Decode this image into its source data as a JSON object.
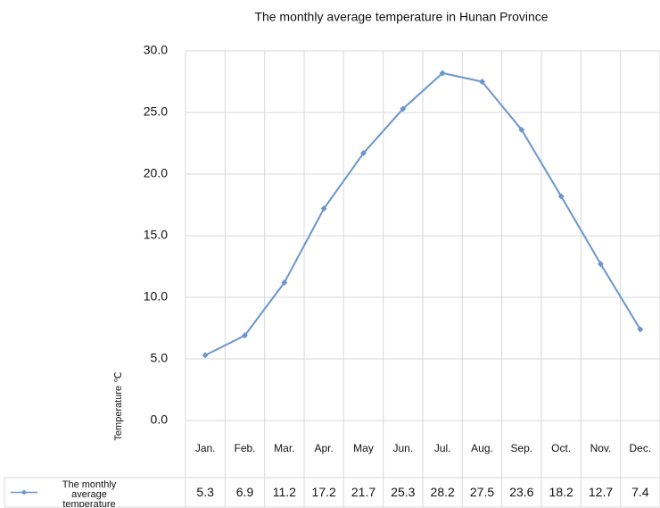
{
  "chart_data": {
    "type": "line",
    "title": "The monthly average temperature in Hunan Province",
    "y_label": "Temperature ℃",
    "categories": [
      "Jan.",
      "Feb.",
      "Mar.",
      "Apr.",
      "May",
      "Jun.",
      "Jul.",
      "Aug.",
      "Sep.",
      "Oct.",
      "Nov.",
      "Dec."
    ],
    "series": [
      {
        "name": "The monthly average temperature",
        "color": "#6a96cf",
        "values": [
          5.3,
          6.9,
          11.2,
          17.2,
          21.7,
          25.3,
          28.2,
          27.5,
          23.6,
          18.2,
          12.7,
          7.4
        ]
      }
    ],
    "ylim": [
      0,
      30
    ],
    "yticks": [
      {
        "value": 0,
        "label": "0.0"
      },
      {
        "value": 5,
        "label": "5.0"
      },
      {
        "value": 10,
        "label": "10.0"
      },
      {
        "value": 15,
        "label": "15.0"
      },
      {
        "value": 20,
        "label": "20.0"
      },
      {
        "value": 25,
        "label": "25.0"
      },
      {
        "value": 30,
        "label": "30.0"
      }
    ],
    "grid": true
  }
}
